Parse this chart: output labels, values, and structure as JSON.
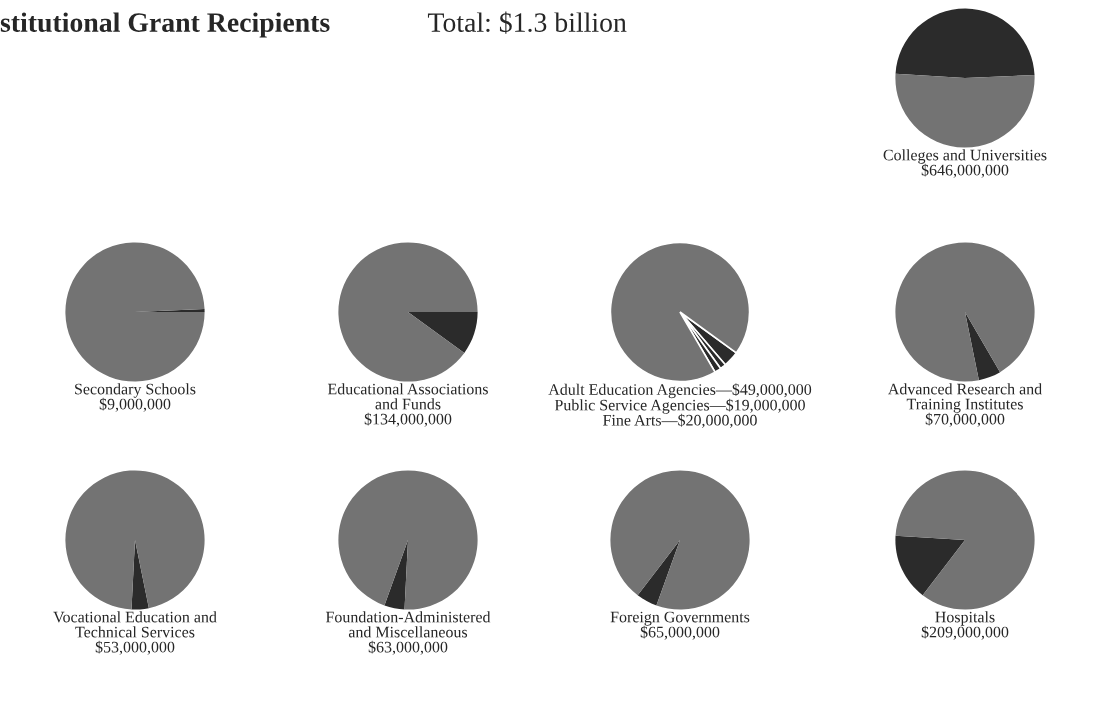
{
  "chart_data": [
    {
      "type": "other",
      "title": "stitutional Grant Recipients",
      "subtitle": "Total: $1.3 billion"
    },
    {
      "type": "pie",
      "title": "Colleges and Universities\n$646,000,000",
      "categories": [
        null,
        null
      ],
      "values": [
        48.3,
        51.7
      ],
      "colors": [
        "#2b2b2b",
        "#737373"
      ]
    },
    {
      "type": "pie",
      "title": "Secondary Schools\n$9,000,000",
      "categories": [
        null,
        null
      ],
      "values": [
        0.7,
        99.3
      ],
      "colors": [
        "#2b2b2b",
        "#737373"
      ]
    },
    {
      "type": "pie",
      "title": "Educational Associations\nand Funds\n$134,000,000",
      "categories": [
        null,
        null
      ],
      "values": [
        10.0,
        90.0
      ],
      "colors": [
        "#2b2b2b",
        "#737373"
      ]
    },
    {
      "type": "pie",
      "title": "Adult Education Agencies—$49,000,000\nPublic Service Agencies—$19,000,000\nFine Arts—$20,000,000",
      "categories": [
        null,
        null,
        null,
        null
      ],
      "values": [
        3.7,
        1.4,
        1.5,
        93.4
      ],
      "colors": [
        "#2b2b2b",
        "#2b2b2b",
        "#2b2b2b",
        "#737373"
      ]
    },
    {
      "type": "pie",
      "title": "Advanced Research and\nTraining Institutes\n$70,000,000",
      "categories": [
        null,
        null
      ],
      "values": [
        5.2,
        94.8
      ],
      "colors": [
        "#2b2b2b",
        "#737373"
      ]
    },
    {
      "type": "pie",
      "title": "Vocational Education and\nTechnical Services\n$53,000,000",
      "categories": [
        null,
        null
      ],
      "values": [
        4.0,
        96.0
      ],
      "colors": [
        "#2b2b2b",
        "#737373"
      ]
    },
    {
      "type": "pie",
      "title": "Foundation-Administered\nand Miscellaneous\n$63,000,000",
      "categories": [
        null,
        null
      ],
      "values": [
        4.7,
        95.3
      ],
      "colors": [
        "#2b2b2b",
        "#737373"
      ]
    },
    {
      "type": "pie",
      "title": "Foreign Governments\n$65,000,000",
      "categories": [
        null,
        null
      ],
      "values": [
        4.9,
        95.1
      ],
      "colors": [
        "#2b2b2b",
        "#737373"
      ]
    },
    {
      "type": "pie",
      "title": "Hospitals\n$209,000,000",
      "categories": [
        null,
        null
      ],
      "values": [
        15.6,
        84.4
      ],
      "colors": [
        "#2b2b2b",
        "#737373"
      ]
    }
  ]
}
